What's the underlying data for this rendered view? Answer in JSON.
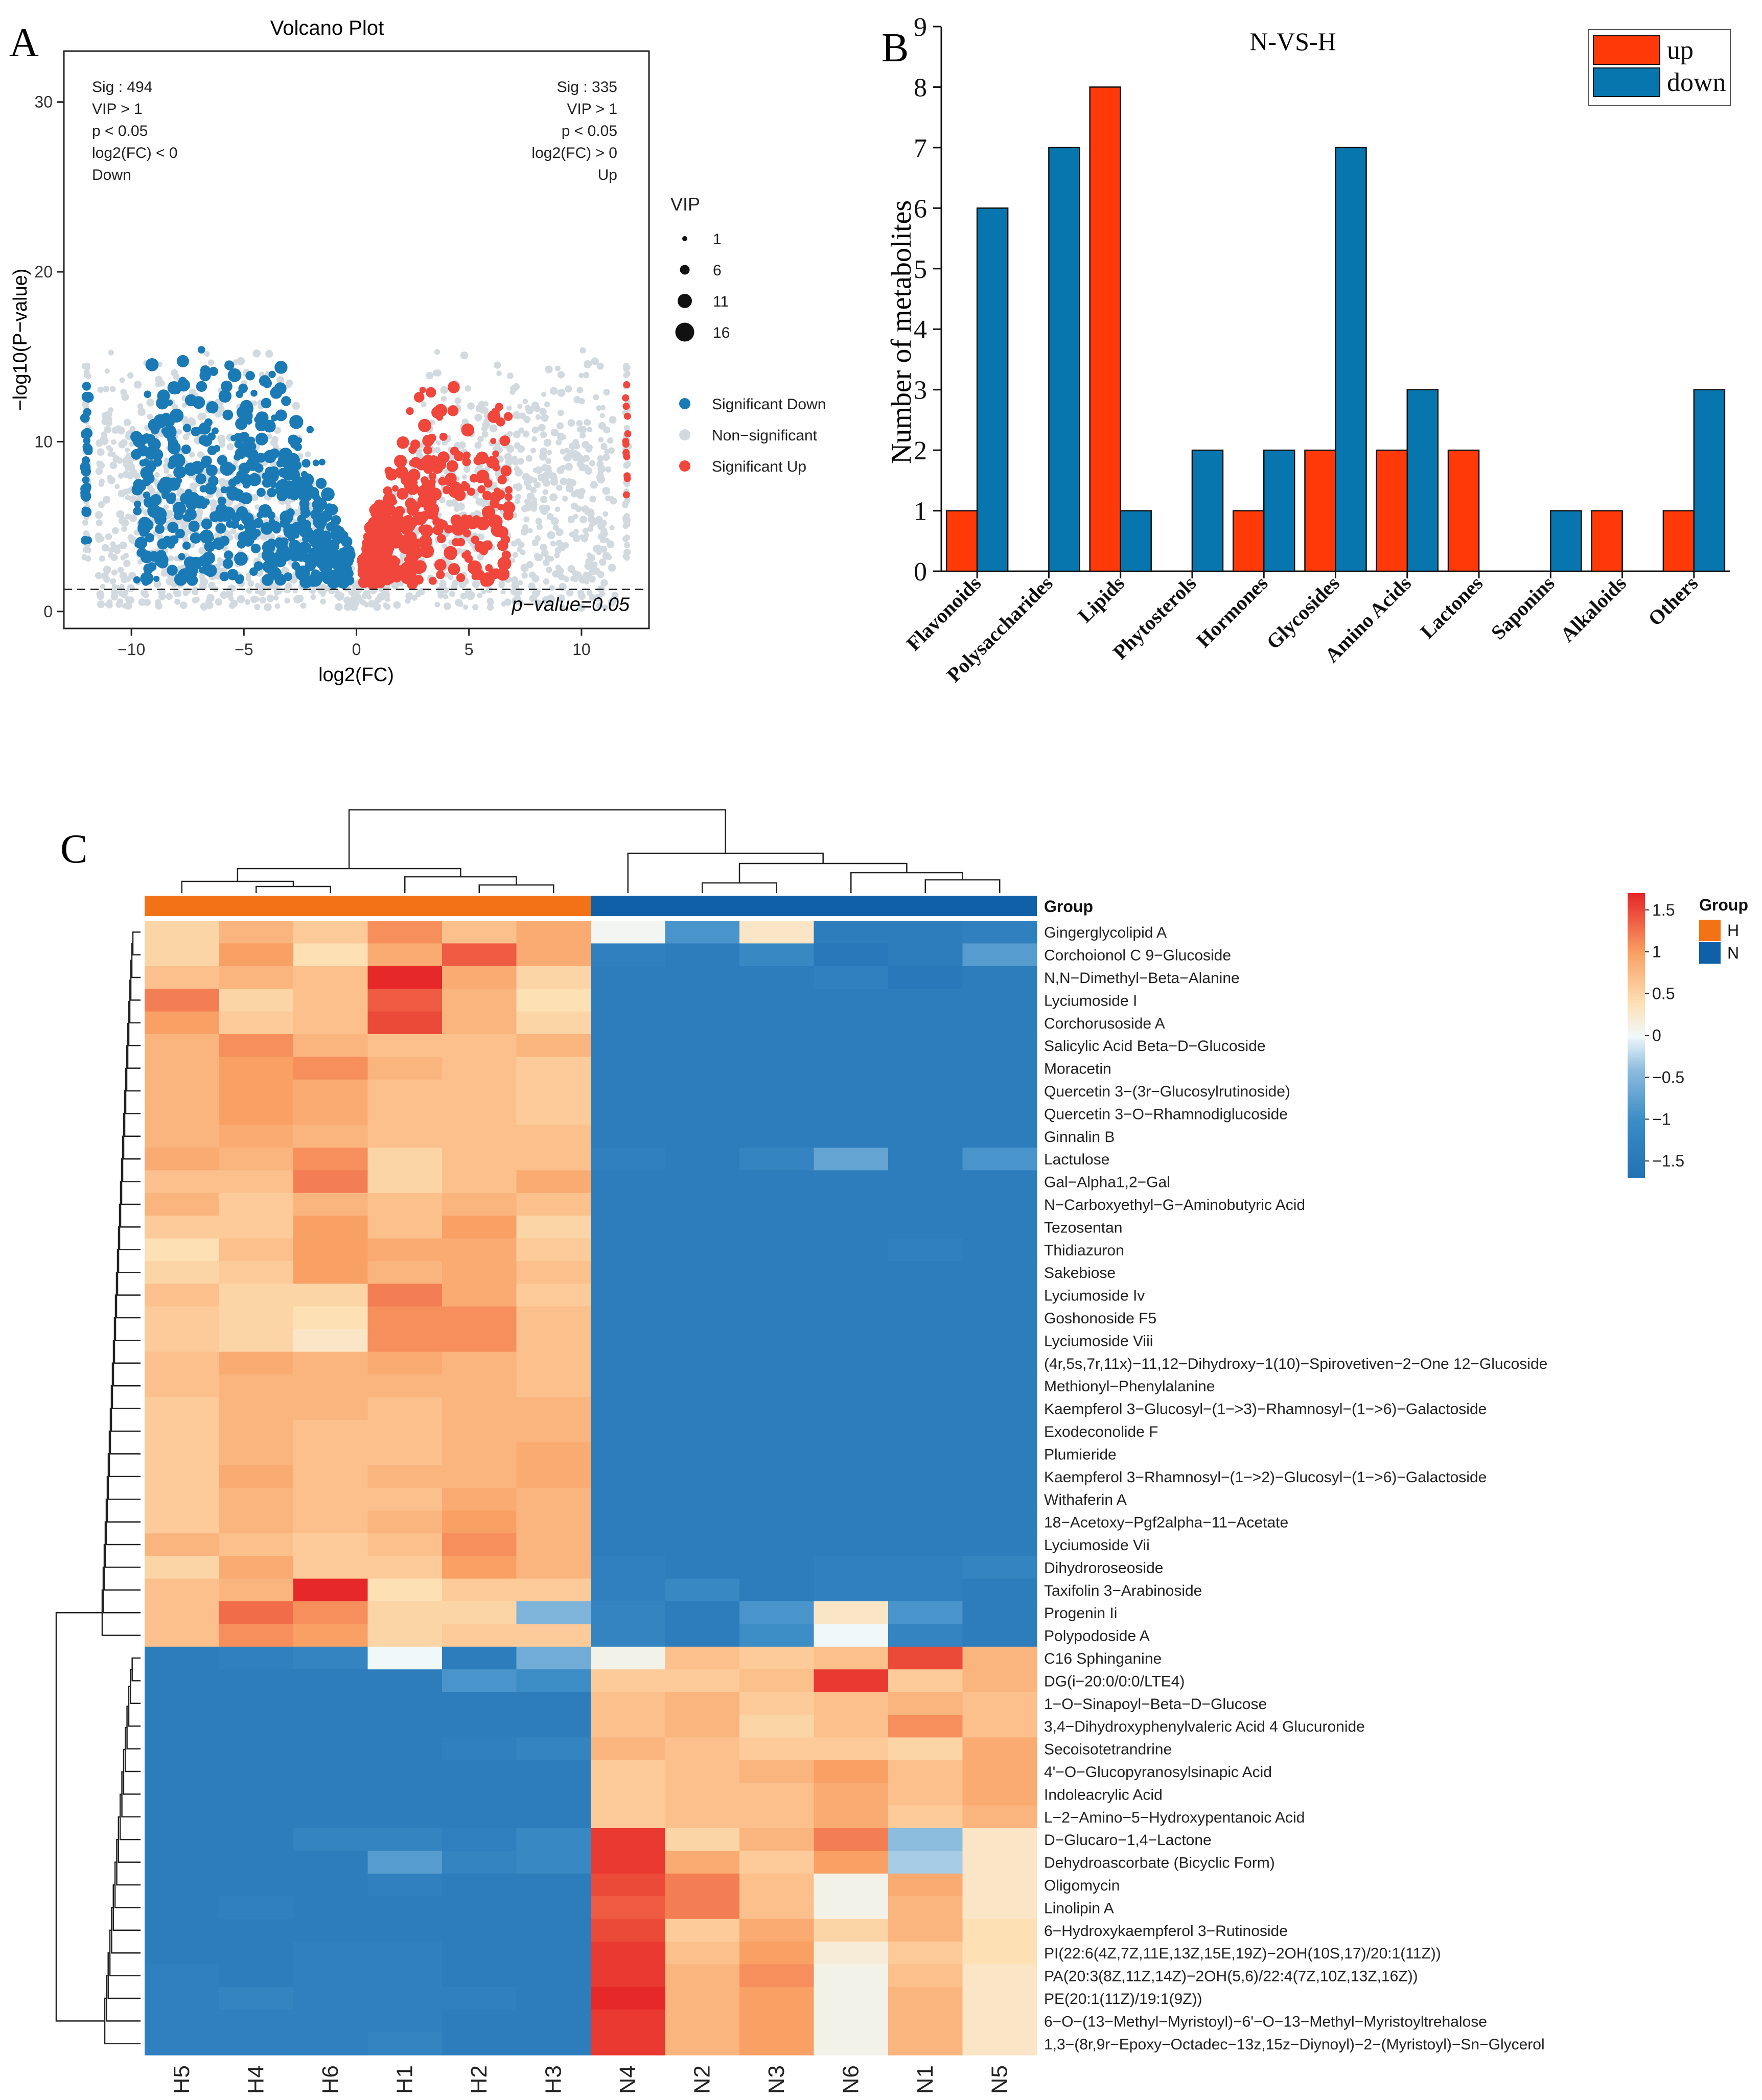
{
  "panels": {
    "a": "A",
    "b": "B",
    "c": "C"
  },
  "chart_data": [
    {
      "type": "scatter",
      "title": "Volcano Plot",
      "xlabel": "log2(FC)",
      "ylabel": "−log10(P−value)",
      "xlim": [
        -13,
        13
      ],
      "ylim": [
        -1,
        33
      ],
      "xticks": [
        -10,
        -5,
        0,
        5,
        10
      ],
      "yticks": [
        0,
        10,
        20,
        30
      ],
      "threshold_y": 1.3,
      "threshold_label": "p−value=0.05",
      "left_note": [
        "Sig : 494",
        "VIP > 1",
        "p < 0.05",
        "log2(FC) < 0",
        "Down"
      ],
      "right_note": [
        "Sig : 335",
        "VIP > 1",
        "p < 0.05",
        "log2(FC) > 0",
        "Up"
      ],
      "size_legend": {
        "title": "VIP",
        "values": [
          1,
          6,
          11,
          16
        ]
      },
      "series": [
        {
          "name": "Significant Down",
          "color": "#1a7ab5",
          "count": 494
        },
        {
          "name": "Non−significant",
          "color": "#d2dadf"
        },
        {
          "name": "Significant Up",
          "color": "#f0463c",
          "count": 335
        }
      ]
    },
    {
      "type": "bar",
      "title": "N-VS-H",
      "ylabel": "Number of metabolites",
      "ylim": [
        0,
        9
      ],
      "yticks": [
        0,
        1,
        2,
        3,
        4,
        5,
        6,
        7,
        8,
        9
      ],
      "categories": [
        "Flavonoids",
        "Polysaccharides",
        "Lipids",
        "Phytosterols",
        "Hormones",
        "Glycosides",
        "Amino Acids",
        "Lactones",
        "Saponins",
        "Alkaloids",
        "Others"
      ],
      "series": [
        {
          "name": "up",
          "color": "#ff3a08",
          "values": [
            1,
            0,
            8,
            0,
            1,
            2,
            2,
            2,
            0,
            1,
            1
          ]
        },
        {
          "name": "down",
          "color": "#0776ae",
          "values": [
            6,
            7,
            1,
            2,
            2,
            7,
            3,
            0,
            1,
            0,
            3
          ]
        }
      ]
    },
    {
      "type": "heatmap",
      "group_label": "Group",
      "groups": [
        {
          "name": "H",
          "color": "#f47216"
        },
        {
          "name": "N",
          "color": "#1060a8"
        }
      ],
      "colorbar": {
        "min": -1.7,
        "max": 1.7,
        "ticks": [
          1.5,
          1,
          0.5,
          0,
          -0.5,
          -1,
          -1.5
        ]
      },
      "columns": [
        "H5",
        "H4",
        "H6",
        "H1",
        "H2",
        "H3",
        "N4",
        "N2",
        "N3",
        "N6",
        "N1",
        "N5"
      ],
      "rows": [
        "Gingerglycolipid A",
        "Corchoionol C 9−Glucoside",
        "N,N−Dimethyl−Beta−Alanine",
        "Lyciumoside I",
        "Corchorusoside A",
        "Salicylic Acid Beta−D−Glucoside",
        "Moracetin",
        "Quercetin 3−(3r−Glucosylrutinoside)",
        "Quercetin 3−O−Rhamnodiglucoside",
        "Ginnalin B",
        "Lactulose",
        "Gal−Alpha1,2−Gal",
        "N−Carboxyethyl−G−Aminobutyric Acid",
        "Tezosentan",
        "Thidiazuron",
        "Sakebiose",
        "Lyciumoside Iv",
        "Goshonoside F5",
        "Lyciumoside Viii",
        "(4r,5s,7r,11x)−11,12−Dihydroxy−1(10)−Spirovetiven−2−One 12−Glucoside",
        "Methionyl−Phenylalanine",
        "Kaempferol 3−Glucosyl−(1−>3)−Rhamnosyl−(1−>6)−Galactoside",
        "Exodeconolide F",
        "Plumieride",
        "Kaempferol 3−Rhamnosyl−(1−>2)−Glucosyl−(1−>6)−Galactoside",
        "Withaferin A",
        "18−Acetoxy−Pgf2alpha−11−Acetate",
        "Lyciumoside Vii",
        "Dihydroroseoside",
        "Taxifolin 3−Arabinoside",
        "Progenin Ii",
        "Polypodoside A",
        "C16 Sphinganine",
        "DG(i−20:0/0:0/LTE4)",
        "1−O−Sinapoyl−Beta−D−Glucose",
        "3,4−Dihydroxyphenylvaleric Acid 4 Glucuronide",
        "Secoisotetrandrine",
        "4'−O−Glucopyranosylsinapic Acid",
        "Indoleacrylic Acid",
        "L−2−Amino−5−Hydroxypentanoic Acid",
        "D−Glucaro−1,4−Lactone",
        "Dehydroascorbate (Bicyclic Form)",
        "Oligomycin",
        "Linolipin A",
        "6−Hydroxykaempferol 3−Rutinoside",
        "PI(22:6(4Z,7Z,11E,13Z,15E,19Z)−2OH(10S,17)/20:1(11Z))",
        "PA(20:3(8Z,11Z,14Z)−2OH(5,6)/22:4(7Z,10Z,13Z,16Z))",
        "PE(20:1(11Z)/19:1(9Z))",
        "6−O−(13−Methyl−Myristoyl)−6'−O−13−Methyl−Myristoyltrehalose",
        "1,3−(8r,9r−Epoxy−Octadec−13z,15z−Diynoyl)−2−(Myristoyl)−Sn−Glycerol"
      ],
      "values": [
        [
          0.5,
          0.8,
          0.6,
          1.1,
          0.7,
          0.9,
          0.05,
          -0.9,
          0.3,
          -1.4,
          -1.4,
          -1.3
        ],
        [
          0.5,
          1.0,
          0.4,
          0.9,
          1.4,
          0.9,
          -1.3,
          -1.4,
          -1.1,
          -1.5,
          -1.4,
          -0.8
        ],
        [
          0.7,
          0.8,
          0.7,
          1.7,
          0.9,
          0.5,
          -1.4,
          -1.4,
          -1.4,
          -1.3,
          -1.5,
          -1.4
        ],
        [
          1.2,
          0.5,
          0.7,
          1.4,
          0.8,
          0.4,
          -1.4,
          -1.4,
          -1.4,
          -1.4,
          -1.4,
          -1.4
        ],
        [
          1.0,
          0.6,
          0.7,
          1.5,
          0.8,
          0.5,
          -1.4,
          -1.4,
          -1.4,
          -1.4,
          -1.4,
          -1.4
        ],
        [
          0.8,
          1.1,
          0.8,
          0.7,
          0.7,
          0.8,
          -1.4,
          -1.4,
          -1.4,
          -1.4,
          -1.4,
          -1.4
        ],
        [
          0.8,
          1.0,
          1.1,
          0.8,
          0.7,
          0.6,
          -1.4,
          -1.4,
          -1.4,
          -1.4,
          -1.4,
          -1.4
        ],
        [
          0.8,
          1.0,
          0.9,
          0.7,
          0.7,
          0.6,
          -1.4,
          -1.4,
          -1.4,
          -1.4,
          -1.4,
          -1.4
        ],
        [
          0.8,
          1.0,
          0.9,
          0.7,
          0.7,
          0.6,
          -1.4,
          -1.4,
          -1.4,
          -1.4,
          -1.4,
          -1.4
        ],
        [
          0.8,
          0.9,
          0.8,
          0.7,
          0.7,
          0.7,
          -1.4,
          -1.4,
          -1.4,
          -1.4,
          -1.4,
          -1.4
        ],
        [
          0.9,
          0.8,
          1.1,
          0.5,
          0.7,
          0.7,
          -1.3,
          -1.4,
          -1.2,
          -0.7,
          -1.4,
          -0.9
        ],
        [
          0.7,
          0.7,
          1.2,
          0.5,
          0.7,
          0.9,
          -1.4,
          -1.4,
          -1.4,
          -1.4,
          -1.4,
          -1.4
        ],
        [
          0.8,
          0.6,
          0.8,
          0.7,
          0.8,
          0.7,
          -1.4,
          -1.4,
          -1.4,
          -1.4,
          -1.4,
          -1.4
        ],
        [
          0.6,
          0.6,
          1.0,
          0.7,
          1.0,
          0.5,
          -1.4,
          -1.4,
          -1.4,
          -1.4,
          -1.4,
          -1.4
        ],
        [
          0.4,
          0.7,
          1.0,
          0.9,
          0.9,
          0.6,
          -1.4,
          -1.4,
          -1.4,
          -1.4,
          -1.3,
          -1.4
        ],
        [
          0.5,
          0.6,
          1.0,
          0.8,
          0.9,
          0.7,
          -1.4,
          -1.4,
          -1.4,
          -1.4,
          -1.4,
          -1.4
        ],
        [
          0.7,
          0.5,
          0.5,
          1.2,
          0.9,
          0.6,
          -1.4,
          -1.4,
          -1.4,
          -1.4,
          -1.4,
          -1.4
        ],
        [
          0.6,
          0.5,
          0.4,
          1.1,
          1.1,
          0.7,
          -1.4,
          -1.4,
          -1.4,
          -1.4,
          -1.4,
          -1.4
        ],
        [
          0.6,
          0.5,
          0.3,
          1.1,
          1.1,
          0.7,
          -1.4,
          -1.4,
          -1.4,
          -1.4,
          -1.4,
          -1.4
        ],
        [
          0.7,
          0.9,
          0.8,
          0.9,
          0.8,
          0.7,
          -1.4,
          -1.4,
          -1.4,
          -1.4,
          -1.4,
          -1.4
        ],
        [
          0.7,
          0.8,
          0.8,
          0.8,
          0.8,
          0.7,
          -1.4,
          -1.4,
          -1.4,
          -1.4,
          -1.4,
          -1.4
        ],
        [
          0.6,
          0.8,
          0.8,
          0.7,
          0.8,
          0.8,
          -1.4,
          -1.4,
          -1.4,
          -1.4,
          -1.4,
          -1.4
        ],
        [
          0.6,
          0.8,
          0.7,
          0.7,
          0.8,
          0.8,
          -1.4,
          -1.4,
          -1.4,
          -1.4,
          -1.4,
          -1.4
        ],
        [
          0.6,
          0.8,
          0.7,
          0.7,
          0.8,
          0.9,
          -1.4,
          -1.4,
          -1.4,
          -1.4,
          -1.4,
          -1.4
        ],
        [
          0.6,
          0.9,
          0.7,
          0.8,
          0.8,
          0.9,
          -1.4,
          -1.4,
          -1.4,
          -1.4,
          -1.4,
          -1.4
        ],
        [
          0.6,
          0.8,
          0.7,
          0.7,
          0.9,
          0.8,
          -1.4,
          -1.4,
          -1.4,
          -1.4,
          -1.4,
          -1.4
        ],
        [
          0.6,
          0.8,
          0.7,
          0.8,
          1.0,
          0.8,
          -1.4,
          -1.4,
          -1.4,
          -1.4,
          -1.4,
          -1.4
        ],
        [
          0.8,
          0.7,
          0.6,
          0.7,
          1.1,
          0.8,
          -1.4,
          -1.4,
          -1.4,
          -1.4,
          -1.4,
          -1.4
        ],
        [
          0.5,
          0.9,
          0.6,
          0.6,
          1.0,
          0.8,
          -1.3,
          -1.4,
          -1.4,
          -1.3,
          -1.3,
          -1.2
        ],
        [
          0.7,
          0.8,
          1.8,
          0.4,
          0.6,
          0.6,
          -1.3,
          -1.1,
          -1.4,
          -1.3,
          -1.3,
          -1.4
        ],
        [
          0.7,
          1.3,
          1.1,
          0.5,
          0.5,
          -0.5,
          -1.2,
          -1.4,
          -0.9,
          0.3,
          -0.9,
          -1.4
        ],
        [
          0.7,
          1.1,
          1.0,
          0.5,
          0.6,
          0.6,
          -1.2,
          -1.4,
          -1.0,
          0.0,
          -1.2,
          -1.4
        ],
        [
          -1.4,
          -1.3,
          -1.2,
          0.0,
          -1.4,
          -0.6,
          0.1,
          0.7,
          0.6,
          0.7,
          1.5,
          0.8
        ],
        [
          -1.4,
          -1.4,
          -1.4,
          -1.4,
          -0.9,
          -1.0,
          0.6,
          0.6,
          0.7,
          1.6,
          0.6,
          0.8
        ],
        [
          -1.4,
          -1.4,
          -1.4,
          -1.4,
          -1.4,
          -1.4,
          0.7,
          0.8,
          0.6,
          0.7,
          0.8,
          0.7
        ],
        [
          -1.4,
          -1.4,
          -1.4,
          -1.4,
          -1.4,
          -1.4,
          0.7,
          0.8,
          0.5,
          0.7,
          1.1,
          0.7
        ],
        [
          -1.4,
          -1.4,
          -1.4,
          -1.4,
          -1.3,
          -1.2,
          0.8,
          0.7,
          0.6,
          0.6,
          0.5,
          0.9
        ],
        [
          -1.4,
          -1.4,
          -1.4,
          -1.4,
          -1.4,
          -1.4,
          0.6,
          0.7,
          0.8,
          1.0,
          0.7,
          0.9
        ],
        [
          -1.4,
          -1.4,
          -1.4,
          -1.4,
          -1.4,
          -1.4,
          0.6,
          0.7,
          0.7,
          0.9,
          0.7,
          0.9
        ],
        [
          -1.4,
          -1.4,
          -1.4,
          -1.4,
          -1.4,
          -1.4,
          0.6,
          0.7,
          0.7,
          0.9,
          0.6,
          0.8
        ],
        [
          -1.4,
          -1.4,
          -1.2,
          -1.2,
          -1.3,
          -1.1,
          1.6,
          0.5,
          0.8,
          1.2,
          -0.4,
          0.3
        ],
        [
          -1.4,
          -1.4,
          -1.4,
          -0.8,
          -1.2,
          -1.1,
          1.6,
          0.9,
          0.6,
          1.0,
          -0.3,
          0.3
        ],
        [
          -1.4,
          -1.4,
          -1.4,
          -1.3,
          -1.4,
          -1.4,
          1.5,
          1.2,
          0.7,
          0.1,
          0.9,
          0.3
        ],
        [
          -1.4,
          -1.3,
          -1.4,
          -1.4,
          -1.4,
          -1.4,
          1.4,
          1.2,
          0.7,
          0.1,
          0.8,
          0.3
        ],
        [
          -1.4,
          -1.4,
          -1.4,
          -1.4,
          -1.4,
          -1.4,
          1.5,
          0.6,
          0.9,
          0.5,
          0.8,
          0.4
        ],
        [
          -1.4,
          -1.4,
          -1.3,
          -1.3,
          -1.4,
          -1.4,
          1.6,
          0.7,
          1.0,
          0.2,
          0.6,
          0.4
        ],
        [
          -1.3,
          -1.4,
          -1.3,
          -1.3,
          -1.4,
          -1.4,
          1.6,
          0.8,
          1.1,
          0.1,
          0.7,
          0.3
        ],
        [
          -1.3,
          -1.2,
          -1.3,
          -1.3,
          -1.3,
          -1.4,
          1.7,
          0.8,
          1.0,
          0.1,
          0.8,
          0.3
        ],
        [
          -1.3,
          -1.3,
          -1.3,
          -1.3,
          -1.4,
          -1.4,
          1.6,
          0.8,
          1.0,
          0.1,
          0.8,
          0.3
        ],
        [
          -1.3,
          -1.3,
          -1.3,
          -1.2,
          -1.4,
          -1.4,
          1.6,
          0.8,
          1.0,
          0.1,
          0.8,
          0.3
        ]
      ]
    }
  ]
}
